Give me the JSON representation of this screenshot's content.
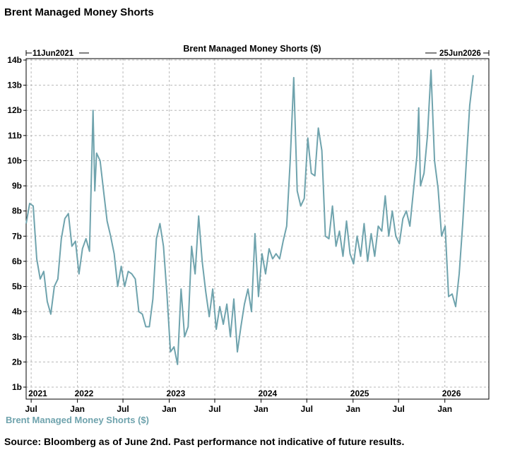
{
  "header": {
    "title": "Brent Managed Money Shorts"
  },
  "footer": {
    "source": "Source: Bloomberg as of June 2nd. Past performance not indicative of future results."
  },
  "colors": {
    "series": "#6fa3ad",
    "grid": "#b8b8b8",
    "text": "#000000"
  },
  "chart_data": {
    "type": "line",
    "title": "Brent Managed Money Shorts ($)",
    "start_label": "11Jun2021",
    "end_label": "25Jun2026",
    "ylim": [
      1,
      14
    ],
    "y_ticks": [
      1,
      2,
      3,
      4,
      5,
      6,
      7,
      8,
      9,
      10,
      11,
      12,
      13,
      14
    ],
    "y_tick_labels": [
      "1b",
      "2b",
      "3b",
      "4b",
      "5b",
      "6b",
      "7b",
      "8b",
      "9b",
      "10b",
      "11b",
      "12b",
      "13b",
      "14b"
    ],
    "x_range": [
      "2021-06-11",
      "2026-06-25"
    ],
    "x_ticks": [
      {
        "date": "2021-07-01",
        "label": "Jul",
        "year": "2021"
      },
      {
        "date": "2022-01-01",
        "label": "Jan",
        "year": "2022"
      },
      {
        "date": "2022-07-01",
        "label": "Jul",
        "year": ""
      },
      {
        "date": "2023-01-01",
        "label": "Jan",
        "year": "2023"
      },
      {
        "date": "2023-07-01",
        "label": "Jul",
        "year": ""
      },
      {
        "date": "2024-01-01",
        "label": "Jan",
        "year": "2024"
      },
      {
        "date": "2024-07-01",
        "label": "Jul",
        "year": ""
      },
      {
        "date": "2025-01-01",
        "label": "Jan",
        "year": "2025"
      },
      {
        "date": "2025-07-01",
        "label": "Jul",
        "year": ""
      },
      {
        "date": "2026-01-01",
        "label": "Jan",
        "year": "2026"
      }
    ],
    "grid": true,
    "legend": "bottom-left",
    "series": [
      {
        "name": "Brent Managed Money Shorts ($)",
        "unit": "billion USD",
        "points": [
          [
            "2021-06-11",
            7.5
          ],
          [
            "2021-06-25",
            8.3
          ],
          [
            "2021-07-09",
            8.2
          ],
          [
            "2021-07-23",
            6.1
          ],
          [
            "2021-08-06",
            5.3
          ],
          [
            "2021-08-20",
            5.6
          ],
          [
            "2021-09-03",
            4.4
          ],
          [
            "2021-09-17",
            3.9
          ],
          [
            "2021-10-01",
            5.0
          ],
          [
            "2021-10-15",
            5.3
          ],
          [
            "2021-10-29",
            6.9
          ],
          [
            "2021-11-12",
            7.7
          ],
          [
            "2021-11-26",
            7.9
          ],
          [
            "2021-12-10",
            6.6
          ],
          [
            "2021-12-24",
            6.8
          ],
          [
            "2022-01-07",
            5.5
          ],
          [
            "2022-01-21",
            6.5
          ],
          [
            "2022-02-04",
            6.9
          ],
          [
            "2022-02-18",
            6.4
          ],
          [
            "2022-03-04",
            12.0
          ],
          [
            "2022-03-11",
            8.8
          ],
          [
            "2022-03-18",
            10.3
          ],
          [
            "2022-04-01",
            10.0
          ],
          [
            "2022-04-15",
            8.8
          ],
          [
            "2022-04-29",
            7.6
          ],
          [
            "2022-05-13",
            7.0
          ],
          [
            "2022-05-27",
            6.3
          ],
          [
            "2022-06-10",
            5.0
          ],
          [
            "2022-06-24",
            5.8
          ],
          [
            "2022-07-08",
            5.0
          ],
          [
            "2022-07-22",
            5.6
          ],
          [
            "2022-08-05",
            5.5
          ],
          [
            "2022-08-19",
            5.3
          ],
          [
            "2022-09-02",
            4.0
          ],
          [
            "2022-09-16",
            3.9
          ],
          [
            "2022-09-30",
            3.4
          ],
          [
            "2022-10-14",
            3.4
          ],
          [
            "2022-10-28",
            4.5
          ],
          [
            "2022-11-11",
            6.9
          ],
          [
            "2022-11-25",
            7.5
          ],
          [
            "2022-12-09",
            6.6
          ],
          [
            "2022-12-23",
            4.7
          ],
          [
            "2023-01-06",
            2.4
          ],
          [
            "2023-01-20",
            2.6
          ],
          [
            "2023-02-03",
            1.9
          ],
          [
            "2023-02-17",
            4.9
          ],
          [
            "2023-03-03",
            3.0
          ],
          [
            "2023-03-17",
            3.4
          ],
          [
            "2023-03-31",
            6.6
          ],
          [
            "2023-04-14",
            5.5
          ],
          [
            "2023-04-28",
            7.8
          ],
          [
            "2023-05-12",
            6.0
          ],
          [
            "2023-05-26",
            4.8
          ],
          [
            "2023-06-09",
            3.8
          ],
          [
            "2023-06-23",
            4.9
          ],
          [
            "2023-07-07",
            3.3
          ],
          [
            "2023-07-21",
            4.2
          ],
          [
            "2023-08-04",
            3.5
          ],
          [
            "2023-08-18",
            4.3
          ],
          [
            "2023-09-01",
            3.0
          ],
          [
            "2023-09-15",
            4.5
          ],
          [
            "2023-09-29",
            2.4
          ],
          [
            "2023-10-13",
            3.4
          ],
          [
            "2023-10-27",
            4.3
          ],
          [
            "2023-11-10",
            4.9
          ],
          [
            "2023-11-24",
            4.0
          ],
          [
            "2023-12-08",
            7.1
          ],
          [
            "2023-12-22",
            4.6
          ],
          [
            "2024-01-05",
            6.3
          ],
          [
            "2024-01-19",
            5.5
          ],
          [
            "2024-02-02",
            6.5
          ],
          [
            "2024-02-16",
            6.1
          ],
          [
            "2024-03-01",
            6.3
          ],
          [
            "2024-03-15",
            6.1
          ],
          [
            "2024-03-29",
            6.8
          ],
          [
            "2024-04-12",
            7.4
          ],
          [
            "2024-04-26",
            10.0
          ],
          [
            "2024-05-10",
            13.3
          ],
          [
            "2024-05-24",
            8.8
          ],
          [
            "2024-06-07",
            8.2
          ],
          [
            "2024-06-21",
            8.5
          ],
          [
            "2024-07-05",
            10.9
          ],
          [
            "2024-07-19",
            9.5
          ],
          [
            "2024-08-02",
            9.4
          ],
          [
            "2024-08-16",
            11.3
          ],
          [
            "2024-08-30",
            10.4
          ],
          [
            "2024-09-13",
            7.0
          ],
          [
            "2024-09-27",
            6.9
          ],
          [
            "2024-10-11",
            8.2
          ],
          [
            "2024-10-25",
            6.6
          ],
          [
            "2024-11-08",
            7.2
          ],
          [
            "2024-11-22",
            6.2
          ],
          [
            "2024-12-06",
            7.6
          ],
          [
            "2024-12-20",
            6.3
          ],
          [
            "2025-01-03",
            5.9
          ],
          [
            "2025-01-17",
            7.0
          ],
          [
            "2025-01-31",
            6.2
          ],
          [
            "2025-02-14",
            7.5
          ],
          [
            "2025-02-28",
            6.0
          ],
          [
            "2025-03-14",
            7.1
          ],
          [
            "2025-03-28",
            6.2
          ],
          [
            "2025-04-11",
            7.4
          ],
          [
            "2025-04-25",
            7.2
          ],
          [
            "2025-05-09",
            8.6
          ],
          [
            "2025-05-23",
            7.0
          ],
          [
            "2025-06-06",
            8.0
          ],
          [
            "2025-06-20",
            7.0
          ],
          [
            "2025-07-04",
            6.7
          ],
          [
            "2025-07-18",
            7.7
          ],
          [
            "2025-08-01",
            8.0
          ],
          [
            "2025-08-15",
            7.4
          ],
          [
            "2025-08-29",
            8.8
          ],
          [
            "2025-09-12",
            10.2
          ],
          [
            "2025-09-19",
            12.1
          ],
          [
            "2025-09-26",
            9.0
          ],
          [
            "2025-10-10",
            9.5
          ],
          [
            "2025-10-24",
            11.0
          ],
          [
            "2025-11-07",
            13.6
          ],
          [
            "2025-11-21",
            10.0
          ],
          [
            "2025-12-05",
            8.9
          ],
          [
            "2025-12-19",
            7.0
          ],
          [
            "2026-01-02",
            7.4
          ],
          [
            "2026-01-16",
            4.6
          ],
          [
            "2026-01-30",
            4.7
          ],
          [
            "2026-02-13",
            4.2
          ],
          [
            "2026-02-27",
            5.5
          ],
          [
            "2026-03-13",
            7.5
          ],
          [
            "2026-03-27",
            9.9
          ],
          [
            "2026-04-10",
            12.2
          ],
          [
            "2026-04-24",
            13.4
          ]
        ]
      }
    ]
  }
}
